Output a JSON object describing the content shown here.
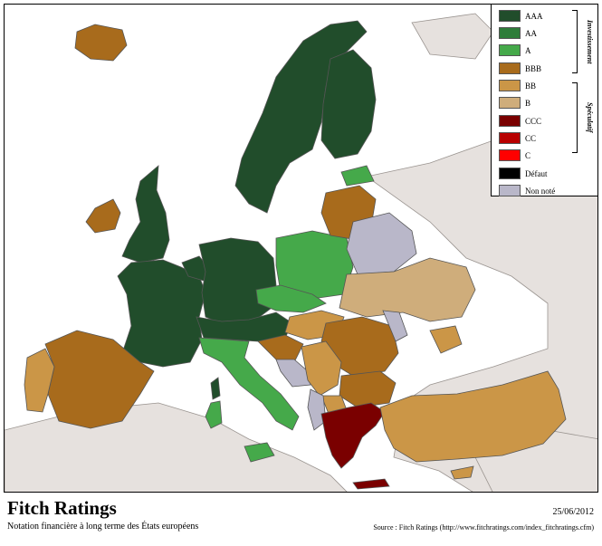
{
  "map": {
    "colors": {
      "sea": "#ffffff",
      "land_other": "#e6e1de",
      "border": "#555555",
      "AAA": "#214d2b",
      "AA": "#2e7d3a",
      "A": "#45a94a",
      "BBB": "#a86b1c",
      "BB": "#cb9647",
      "B": "#cfad7b",
      "CCC": "#7a0000",
      "CC": "#b80000",
      "C": "#ff0000",
      "default": "#000000",
      "not_rated": "#b9b7c9"
    },
    "regions": [
      {
        "name": "scandinavia",
        "rating": "AAA"
      },
      {
        "name": "finland",
        "rating": "AAA"
      },
      {
        "name": "iceland",
        "rating": "BBB"
      },
      {
        "name": "united-kingdom",
        "rating": "AAA"
      },
      {
        "name": "ireland",
        "rating": "BBB"
      },
      {
        "name": "france",
        "rating": "AAA"
      },
      {
        "name": "benelux",
        "rating": "AAA"
      },
      {
        "name": "germany",
        "rating": "AAA"
      },
      {
        "name": "austria-switzerland",
        "rating": "AAA"
      },
      {
        "name": "spain",
        "rating": "BBB"
      },
      {
        "name": "portugal",
        "rating": "BB"
      },
      {
        "name": "italy",
        "rating": "A"
      },
      {
        "name": "sardinia",
        "rating": "A"
      },
      {
        "name": "sicily",
        "rating": "A"
      },
      {
        "name": "corsica",
        "rating": "AAA"
      },
      {
        "name": "poland",
        "rating": "A"
      },
      {
        "name": "czech-slovakia",
        "rating": "A"
      },
      {
        "name": "estonia",
        "rating": "A"
      },
      {
        "name": "latvia-lithuania",
        "rating": "BBB"
      },
      {
        "name": "belarus",
        "rating": "not_rated"
      },
      {
        "name": "ukraine",
        "rating": "B"
      },
      {
        "name": "hungary",
        "rating": "BB"
      },
      {
        "name": "romania",
        "rating": "BBB"
      },
      {
        "name": "moldova",
        "rating": "not_rated"
      },
      {
        "name": "croatia-slovenia",
        "rating": "BBB"
      },
      {
        "name": "bosnia",
        "rating": "not_rated"
      },
      {
        "name": "serbia",
        "rating": "BB"
      },
      {
        "name": "bulgaria",
        "rating": "BBB"
      },
      {
        "name": "macedonia",
        "rating": "BB"
      },
      {
        "name": "albania",
        "rating": "not_rated"
      },
      {
        "name": "greece",
        "rating": "CCC"
      },
      {
        "name": "crete",
        "rating": "CCC"
      },
      {
        "name": "turkey",
        "rating": "BB"
      },
      {
        "name": "cyprus",
        "rating": "BB"
      },
      {
        "name": "georgia",
        "rating": "BB"
      }
    ]
  },
  "legend": {
    "items": [
      {
        "label": "AAA",
        "key": "AAA"
      },
      {
        "label": "AA",
        "key": "AA"
      },
      {
        "label": "A",
        "key": "A"
      },
      {
        "label": "BBB",
        "key": "BBB"
      },
      {
        "label": "BB",
        "key": "BB"
      },
      {
        "label": "B",
        "key": "B"
      },
      {
        "label": "CCC",
        "key": "CCC"
      },
      {
        "label": "CC",
        "key": "CC"
      },
      {
        "label": "C",
        "key": "C"
      },
      {
        "label": "Défaut",
        "key": "default"
      },
      {
        "label": "Non noté",
        "key": "not_rated"
      }
    ],
    "groups": {
      "investment": "Investissement",
      "speculative": "Spéculatif"
    }
  },
  "footer": {
    "title": "Fitch Ratings",
    "subtitle": "Notation financière à long terme des États européens",
    "date": "25/06/2012",
    "source": "Source : Fitch Ratings (http://www.fitchratings.com/index_fitchratings.cfm)"
  }
}
